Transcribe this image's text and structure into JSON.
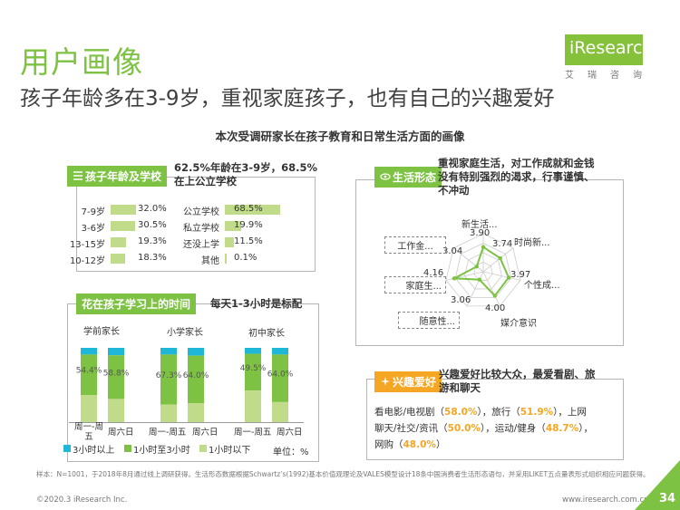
{
  "header": {
    "title": "用户画像",
    "subtitle": "孩子年龄多在3-9岁，重视家庭孩子，也有自己的兴趣爱好",
    "logo": "iResearch",
    "logo_cn": "艾瑞咨询",
    "chart_title": "本次受调研家长在孩子教育和日常生活方面的画像"
  },
  "age_school": {
    "header": "孩子年龄及学校",
    "headline_line1": "62.5%年龄在3-9岁，68.5%",
    "headline_line2": "在上公立学校",
    "age_labels": [
      "7-9岁",
      "3-6岁",
      "13-15岁",
      "10-12岁"
    ],
    "age_value_labels": [
      "32.0%",
      "30.5%",
      "19.3%",
      "18.3%"
    ],
    "school_labels": [
      "公立学校",
      "私立学校",
      "还没上学",
      "其他"
    ],
    "school_value_labels": [
      "68.5%",
      "19.9%",
      "11.5%",
      "0.1%"
    ]
  },
  "study_time": {
    "header": "花在孩子学习上的时间",
    "headline": "每天1-3小时是标配",
    "groups": [
      "学前家长",
      "小学家长",
      "初中家长"
    ],
    "day_labels": [
      "周一-周五",
      "周六日",
      "周一-周五",
      "周六日",
      "周一-周五",
      "周六日"
    ],
    "legend": [
      "3小时以上",
      "1小时至3小时",
      "1小时以下"
    ],
    "unit": "单位：%",
    "mid_labels": [
      "54.4%",
      "58.8%",
      "67.3%",
      "64.0%",
      "49.5%",
      "64.0%"
    ]
  },
  "lifestyle": {
    "header": "生活形态",
    "headline_line1": "重视家庭生活，对工作成就和金钱",
    "headline_line2": "没有特别强烈的渴求，行事谨慎、",
    "headline_line3": "不冲动",
    "dims": [
      "新生活...",
      "时尚新...",
      "个性成...",
      "媒介意识",
      "随意性...",
      "家庭生...",
      "工作金..."
    ],
    "value_labels": [
      "3.90",
      "3.74",
      "3.97",
      "4.00",
      "3.06",
      "4.16",
      "3.04"
    ]
  },
  "hobby": {
    "header": "兴趣爱好",
    "headline_line1": "兴趣爱好比较大众，最爱看剧、旅",
    "headline_line2": "游和聊天",
    "line1_a": "看电影/电视剧（",
    "line1_b": "58.0%",
    "line1_c": "），旅行（",
    "line1_d": "51.9%",
    "line1_e": "），上网",
    "line2_a": "聊天/社交/资讯（",
    "line2_b": "50.0%",
    "line2_c": "），运动/健身（",
    "line2_d": "48.7%",
    "line2_e": "），",
    "line3_a": "网购（",
    "line3_b": "48.0%",
    "line3_c": "）"
  },
  "footer": {
    "note": "样本：N=1001，于2018年8月通过线上调研获得。生活形态数据根据Schwartz’s(1992)基本价值观理论及VALES模型设计18条中国消费者生活形态语句，并采用LIKET五点量表形式组织相应问题获得。",
    "copyright": "©2020.3 iResearch Inc.",
    "website": "www.iresearch.com.cn",
    "page": "34"
  },
  "colors": {
    "green": "#7dc242",
    "light_green": "#c0dc8a",
    "cyan": "#1eb7d8",
    "orange": "#f5a623"
  },
  "chart_data": [
    {
      "type": "bar",
      "title": "孩子年龄及学校",
      "series": [
        {
          "name": "年龄",
          "categories": [
            "7-9岁",
            "3-6岁",
            "13-15岁",
            "10-12岁"
          ],
          "values": [
            32.0,
            30.5,
            19.3,
            18.3
          ]
        },
        {
          "name": "学校",
          "categories": [
            "公立学校",
            "私立学校",
            "还没上学",
            "其他"
          ],
          "values": [
            68.5,
            19.9,
            11.5,
            0.1
          ]
        }
      ]
    },
    {
      "type": "bar",
      "title": "花在孩子学习上的时间",
      "stacked": true,
      "categories": [
        "学前家长 周一-周五",
        "学前家长 周六日",
        "小学家长 周一-周五",
        "小学家长 周六日",
        "初中家长 周一-周五",
        "初中家长 周六日"
      ],
      "series": [
        {
          "name": "3小时以上",
          "values": [
            9.0,
            10.0,
            9.0,
            10.5,
            8.0,
            9.0
          ]
        },
        {
          "name": "1小时至3小时",
          "values": [
            54.4,
            58.8,
            67.3,
            64.0,
            49.5,
            64.0
          ]
        },
        {
          "name": "1小时以下",
          "values": [
            36.6,
            31.2,
            23.7,
            25.5,
            42.5,
            27.0
          ]
        }
      ],
      "ylim": [
        0,
        100
      ]
    },
    {
      "type": "radar",
      "title": "生活形态",
      "categories": [
        "新生活...",
        "时尚新...",
        "个性成...",
        "媒介意识",
        "随意性...",
        "家庭生...",
        "工作金..."
      ],
      "values": [
        3.9,
        3.74,
        3.97,
        4.0,
        3.06,
        4.16,
        3.04
      ]
    }
  ]
}
